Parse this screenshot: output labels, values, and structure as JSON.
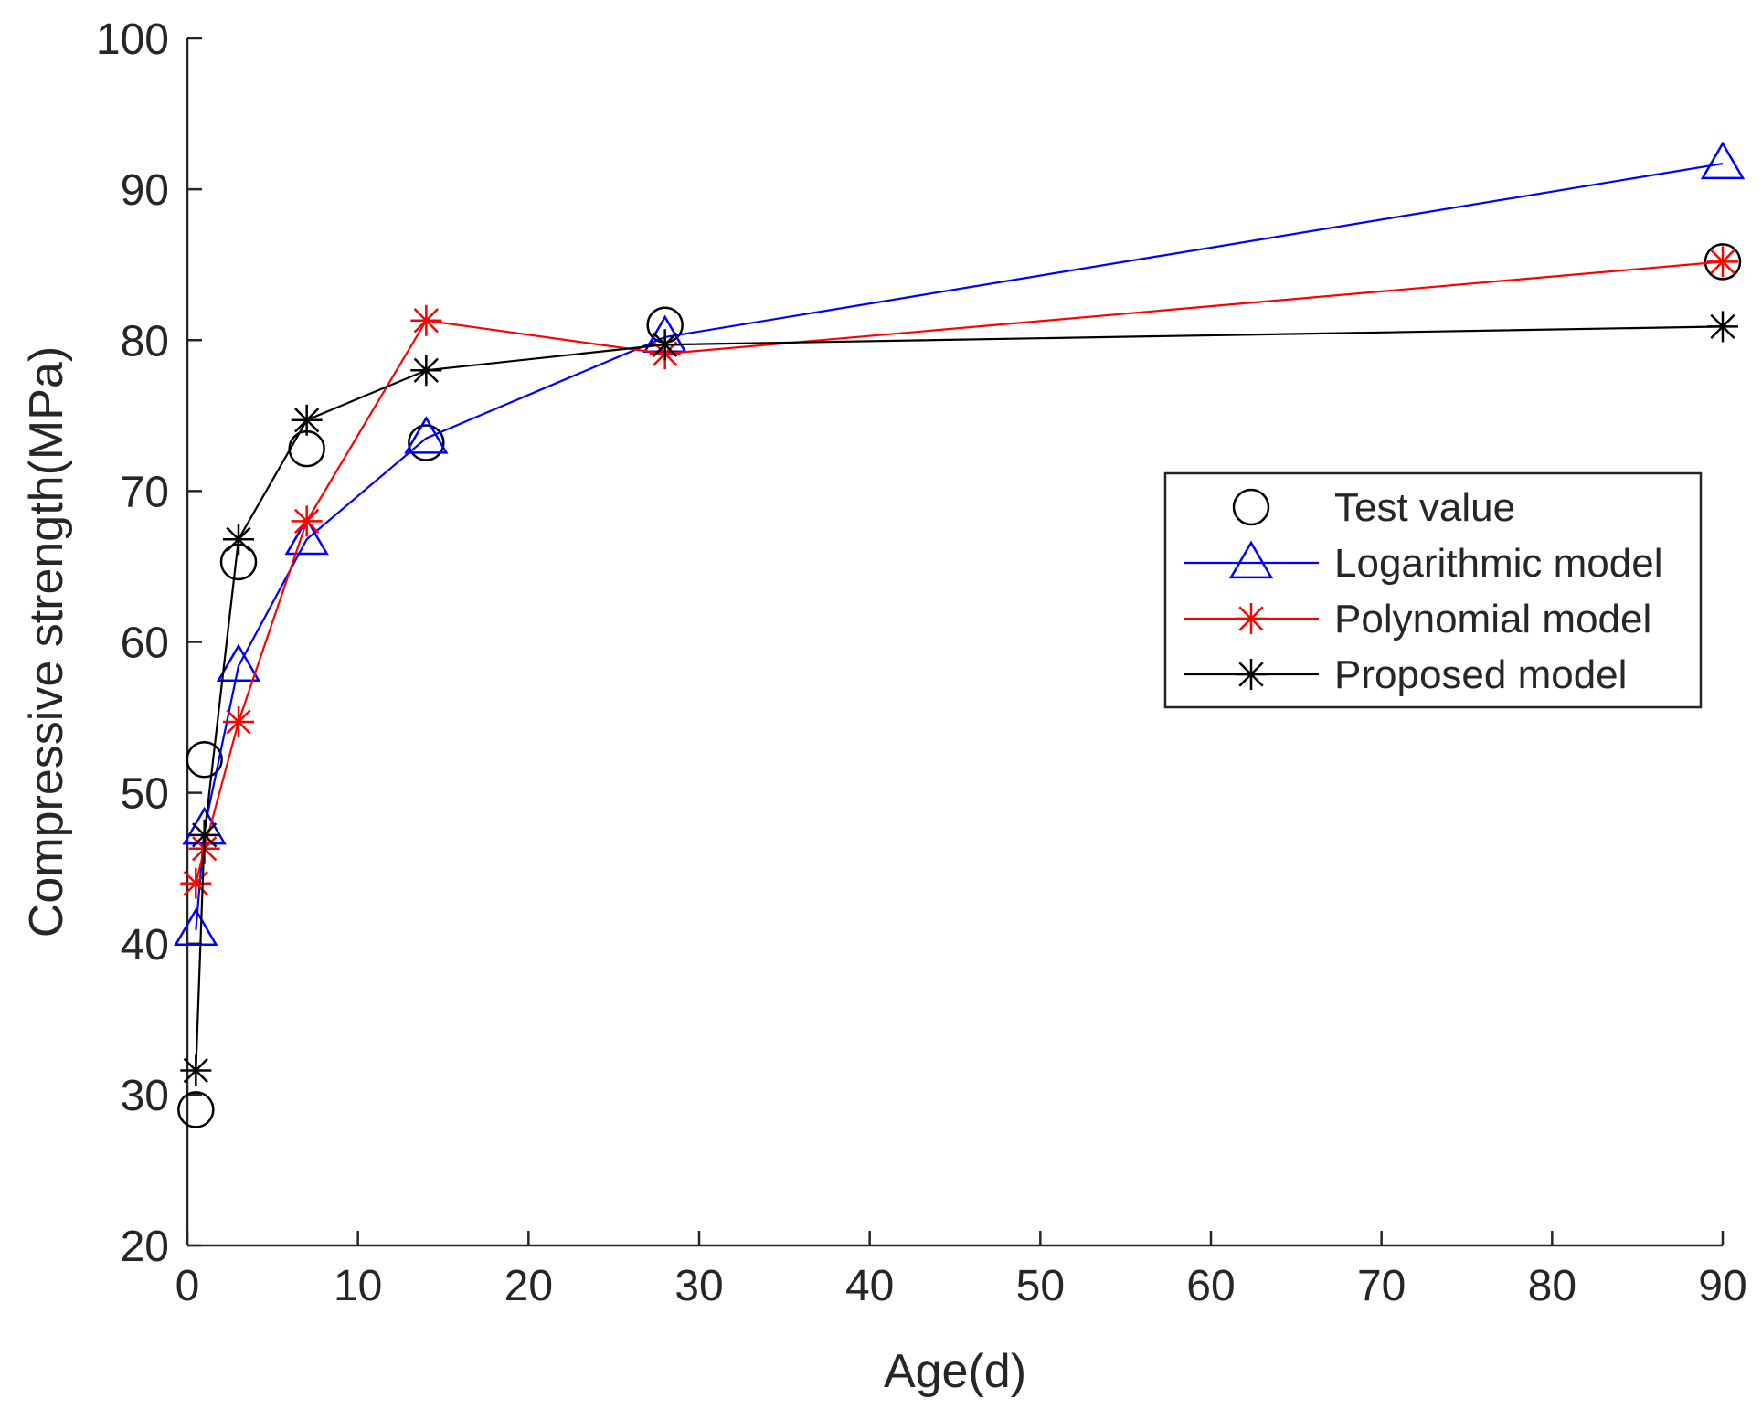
{
  "chart_data": {
    "type": "line",
    "xlabel": "Age(d)",
    "ylabel": "Compressive strength(MPa)",
    "xlim": [
      0,
      90
    ],
    "ylim": [
      20,
      100
    ],
    "xticks": [
      0,
      10,
      20,
      30,
      40,
      50,
      60,
      70,
      80,
      90
    ],
    "yticks": [
      20,
      30,
      40,
      50,
      60,
      70,
      80,
      90,
      100
    ],
    "grid": false,
    "legend_position": "right",
    "series": [
      {
        "name": "Test value",
        "color": "#000000",
        "marker": "circle",
        "line": false,
        "x": [
          0.5,
          1,
          3,
          7,
          14,
          28,
          90
        ],
        "y": [
          29.0,
          52.2,
          65.3,
          72.8,
          73.2,
          81.0,
          85.2
        ]
      },
      {
        "name": "Logarithmic model",
        "color": "#0000ff",
        "marker": "triangle",
        "line": true,
        "x": [
          0.5,
          1,
          3,
          7,
          14,
          28,
          90
        ],
        "y": [
          40.9,
          47.6,
          58.4,
          66.8,
          73.5,
          80.2,
          91.7
        ]
      },
      {
        "name": "Polynomial model",
        "color": "#ff0000",
        "marker": "star",
        "line": true,
        "x": [
          0.5,
          1,
          3,
          7,
          14,
          28,
          90
        ],
        "y": [
          44.0,
          46.3,
          54.7,
          68.0,
          81.3,
          79.1,
          85.2
        ]
      },
      {
        "name": "Proposed model",
        "color": "#000000",
        "marker": "star",
        "line": true,
        "x": [
          0.5,
          1,
          3,
          7,
          14,
          28,
          90
        ],
        "y": [
          31.6,
          47.2,
          66.8,
          74.7,
          78.0,
          79.7,
          80.9
        ]
      }
    ]
  }
}
